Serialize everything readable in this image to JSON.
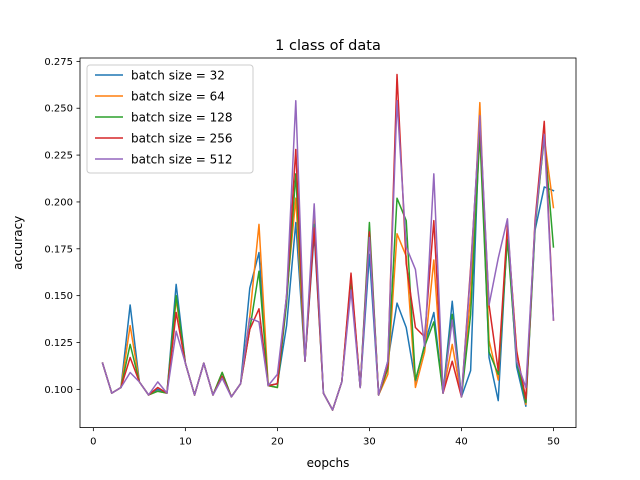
{
  "chart_data": {
    "type": "line",
    "title": "1 class of data",
    "xlabel": "eopchs",
    "ylabel": "accuracy",
    "xlim": [
      -1.45,
      52.45
    ],
    "ylim": [
      0.0796,
      0.2768
    ],
    "xticks": [
      0,
      10,
      20,
      30,
      40,
      50
    ],
    "xtick_labels": [
      "0",
      "10",
      "20",
      "30",
      "40",
      "50"
    ],
    "yticks": [
      0.1,
      0.125,
      0.15,
      0.175,
      0.2,
      0.225,
      0.25,
      0.275
    ],
    "ytick_labels": [
      "0.100",
      "0.125",
      "0.150",
      "0.175",
      "0.200",
      "0.225",
      "0.250",
      "0.275"
    ],
    "grid": false,
    "legend_position": "top-left",
    "x": [
      1,
      2,
      3,
      4,
      5,
      6,
      7,
      8,
      9,
      10,
      11,
      12,
      13,
      14,
      15,
      16,
      17,
      18,
      19,
      20,
      21,
      22,
      23,
      24,
      25,
      26,
      27,
      28,
      29,
      30,
      31,
      32,
      33,
      34,
      35,
      36,
      37,
      38,
      39,
      40,
      41,
      42,
      43,
      44,
      45,
      46,
      47,
      48,
      49,
      50
    ],
    "series": [
      {
        "name": "batch size = 32",
        "color": "#1f77b4",
        "values": [
          0.114,
          0.098,
          0.101,
          0.145,
          0.104,
          0.097,
          0.1,
          0.098,
          0.156,
          0.114,
          0.097,
          0.114,
          0.097,
          0.109,
          0.096,
          0.103,
          0.154,
          0.173,
          0.102,
          0.103,
          0.134,
          0.189,
          0.115,
          0.183,
          0.098,
          0.089,
          0.104,
          0.157,
          0.101,
          0.172,
          0.097,
          0.115,
          0.146,
          0.133,
          0.104,
          0.124,
          0.141,
          0.098,
          0.147,
          0.096,
          0.11,
          0.246,
          0.117,
          0.094,
          0.185,
          0.112,
          0.091,
          0.185,
          0.208,
          0.206
        ]
      },
      {
        "name": "batch size = 64",
        "color": "#ff7f0e",
        "values": [
          0.114,
          0.098,
          0.101,
          0.134,
          0.104,
          0.097,
          0.099,
          0.098,
          0.148,
          0.114,
          0.097,
          0.114,
          0.097,
          0.109,
          0.096,
          0.103,
          0.139,
          0.188,
          0.102,
          0.101,
          0.15,
          0.202,
          0.115,
          0.193,
          0.098,
          0.089,
          0.104,
          0.16,
          0.101,
          0.185,
          0.097,
          0.108,
          0.183,
          0.171,
          0.101,
          0.12,
          0.169,
          0.098,
          0.124,
          0.096,
          0.15,
          0.253,
          0.126,
          0.105,
          0.186,
          0.121,
          0.092,
          0.188,
          0.234,
          0.197
        ]
      },
      {
        "name": "batch size = 128",
        "color": "#2ca02c",
        "values": [
          0.114,
          0.098,
          0.101,
          0.124,
          0.104,
          0.097,
          0.099,
          0.098,
          0.15,
          0.114,
          0.097,
          0.114,
          0.097,
          0.109,
          0.096,
          0.103,
          0.132,
          0.163,
          0.102,
          0.101,
          0.146,
          0.215,
          0.115,
          0.188,
          0.098,
          0.089,
          0.104,
          0.159,
          0.101,
          0.189,
          0.097,
          0.111,
          0.202,
          0.19,
          0.105,
          0.123,
          0.136,
          0.098,
          0.14,
          0.096,
          0.14,
          0.236,
          0.12,
          0.108,
          0.18,
          0.115,
          0.093,
          0.186,
          0.235,
          0.176
        ]
      },
      {
        "name": "batch size = 256",
        "color": "#d62728",
        "values": [
          0.114,
          0.098,
          0.101,
          0.117,
          0.104,
          0.097,
          0.101,
          0.098,
          0.141,
          0.114,
          0.097,
          0.114,
          0.097,
          0.107,
          0.096,
          0.103,
          0.132,
          0.143,
          0.102,
          0.103,
          0.15,
          0.228,
          0.115,
          0.186,
          0.098,
          0.089,
          0.104,
          0.162,
          0.101,
          0.184,
          0.097,
          0.113,
          0.268,
          0.167,
          0.133,
          0.128,
          0.19,
          0.098,
          0.115,
          0.096,
          0.165,
          0.243,
          0.145,
          0.11,
          0.188,
          0.12,
          0.095,
          0.19,
          0.243,
          0.137
        ]
      },
      {
        "name": "batch size = 512",
        "color": "#9467bd",
        "values": [
          0.114,
          0.098,
          0.101,
          0.109,
          0.104,
          0.097,
          0.104,
          0.098,
          0.131,
          0.114,
          0.097,
          0.114,
          0.097,
          0.106,
          0.096,
          0.103,
          0.138,
          0.136,
          0.102,
          0.108,
          0.15,
          0.254,
          0.115,
          0.199,
          0.098,
          0.089,
          0.104,
          0.153,
          0.101,
          0.181,
          0.097,
          0.115,
          0.254,
          0.176,
          0.164,
          0.123,
          0.215,
          0.098,
          0.137,
          0.096,
          0.163,
          0.246,
          0.145,
          0.17,
          0.191,
          0.115,
          0.101,
          0.188,
          0.236,
          0.137
        ]
      }
    ]
  }
}
